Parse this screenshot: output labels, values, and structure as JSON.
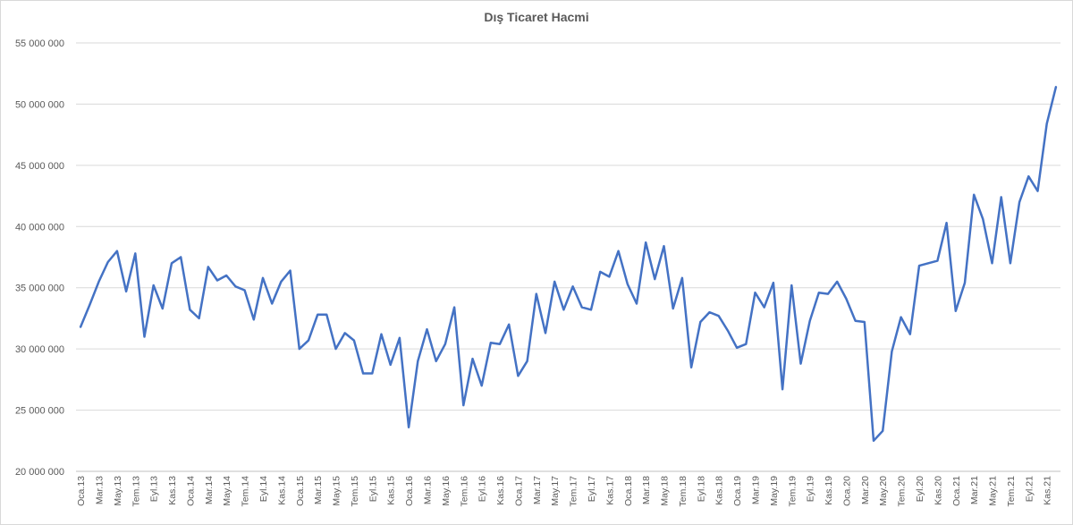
{
  "chart_data": {
    "type": "line",
    "title": "Dış Ticaret Hacmi",
    "xlabel": "",
    "ylabel": "",
    "ylim": [
      20000000,
      55000000
    ],
    "yticks": [
      20000000,
      25000000,
      30000000,
      35000000,
      40000000,
      45000000,
      50000000,
      55000000
    ],
    "ytick_labels": [
      "20 000 000",
      "25 000 000",
      "30 000 000",
      "35 000 000",
      "40 000 000",
      "45 000 000",
      "50 000 000",
      "55 000 000"
    ],
    "grid": true,
    "line_color": "#4472c4",
    "categories": [
      "Oca.13",
      "Şub.13",
      "Mar.13",
      "Nis.13",
      "May.13",
      "Haz.13",
      "Tem.13",
      "Ağu.13",
      "Eyl.13",
      "Eki.13",
      "Kas.13",
      "Ara.13",
      "Oca.14",
      "Şub.14",
      "Mar.14",
      "Nis.14",
      "May.14",
      "Haz.14",
      "Tem.14",
      "Ağu.14",
      "Eyl.14",
      "Eki.14",
      "Kas.14",
      "Ara.14",
      "Oca.15",
      "Şub.15",
      "Mar.15",
      "Nis.15",
      "May.15",
      "Haz.15",
      "Tem.15",
      "Ağu.15",
      "Eyl.15",
      "Eki.15",
      "Kas.15",
      "Ara.15",
      "Oca.16",
      "Şub.16",
      "Mar.16",
      "Nis.16",
      "May.16",
      "Haz.16",
      "Tem.16",
      "Ağu.16",
      "Eyl.16",
      "Eki.16",
      "Kas.16",
      "Ara.16",
      "Oca.17",
      "Şub.17",
      "Mar.17",
      "Nis.17",
      "May.17",
      "Haz.17",
      "Tem.17",
      "Ağu.17",
      "Eyl.17",
      "Eki.17",
      "Kas.17",
      "Ara.17",
      "Oca.18",
      "Şub.18",
      "Mar.18",
      "Nis.18",
      "May.18",
      "Haz.18",
      "Tem.18",
      "Ağu.18",
      "Eyl.18",
      "Eki.18",
      "Kas.18",
      "Ara.18",
      "Oca.19",
      "Şub.19",
      "Mar.19",
      "Nis.19",
      "May.19",
      "Haz.19",
      "Tem.19",
      "Ağu.19",
      "Eyl.19",
      "Eki.19",
      "Kas.19",
      "Ara.19",
      "Oca.20",
      "Şub.20",
      "Mar.20",
      "Nis.20",
      "May.20",
      "Haz.20",
      "Tem.20",
      "Ağu.20",
      "Eyl.20",
      "Eki.20",
      "Kas.20",
      "Ara.20",
      "Oca.21",
      "Şub.21",
      "Mar.21",
      "Nis.21",
      "May.21",
      "Haz.21",
      "Tem.21",
      "Ağu.21",
      "Eyl.21",
      "Eki.21",
      "Kas.21",
      "Ara.21"
    ],
    "visible_tick_labels": [
      "Oca.13",
      "Mar.13",
      "May.13",
      "Tem.13",
      "Eyl.13",
      "Kas.13",
      "Oca.14",
      "Mar.14",
      "May.14",
      "Tem.14",
      "Eyl.14",
      "Kas.14",
      "Oca.15",
      "Mar.15",
      "May.15",
      "Tem.15",
      "Eyl.15",
      "Kas.15",
      "Oca.16",
      "Mar.16",
      "May.16",
      "Tem.16",
      "Eyl.16",
      "Kas.16",
      "Oca.17",
      "Mar.17",
      "May.17",
      "Tem.17",
      "Eyl.17",
      "Kas.17",
      "Oca.18",
      "Mar.18",
      "May.18",
      "Tem.18",
      "Eyl.18",
      "Kas.18",
      "Oca.19",
      "Mar.19",
      "May.19",
      "Tem.19",
      "Eyl.19",
      "Kas.19",
      "Oca.20",
      "Mar.20",
      "May.20",
      "Tem.20",
      "Eyl.20",
      "Kas.20",
      "Oca.21",
      "Mar.21",
      "May.21",
      "Tem.21",
      "Eyl.21",
      "Kas.21"
    ],
    "series": [
      {
        "values": [
          31800000,
          33600000,
          35500000,
          37100000,
          38000000,
          34700000,
          37800000,
          31000000,
          35200000,
          33300000,
          37000000,
          37500000,
          33200000,
          32500000,
          36700000,
          35600000,
          36000000,
          35100000,
          34800000,
          32400000,
          35800000,
          33700000,
          35500000,
          36400000,
          30000000,
          30700000,
          32800000,
          32800000,
          30000000,
          31300000,
          30700000,
          28000000,
          28000000,
          31200000,
          28700000,
          30900000,
          23600000,
          29000000,
          31600000,
          29000000,
          30400000,
          33400000,
          25400000,
          29200000,
          27000000,
          30500000,
          30400000,
          32000000,
          27800000,
          29000000,
          34500000,
          31300000,
          35500000,
          33200000,
          35100000,
          33400000,
          33200000,
          36300000,
          35900000,
          38000000,
          35300000,
          33700000,
          38700000,
          35700000,
          38400000,
          33300000,
          35800000,
          28500000,
          32200000,
          33000000,
          32700000,
          31500000,
          30100000,
          30400000,
          34600000,
          33400000,
          35400000,
          26700000,
          35200000,
          28800000,
          32300000,
          34600000,
          34500000,
          35500000,
          34100000,
          32300000,
          32200000,
          22500000,
          23300000,
          29800000,
          32600000,
          31200000,
          36800000,
          37000000,
          37200000,
          40300000,
          33100000,
          35400000,
          42600000,
          40600000,
          37000000,
          42400000,
          37000000,
          42000000,
          44100000,
          42900000,
          48400000,
          51400000
        ]
      }
    ]
  }
}
